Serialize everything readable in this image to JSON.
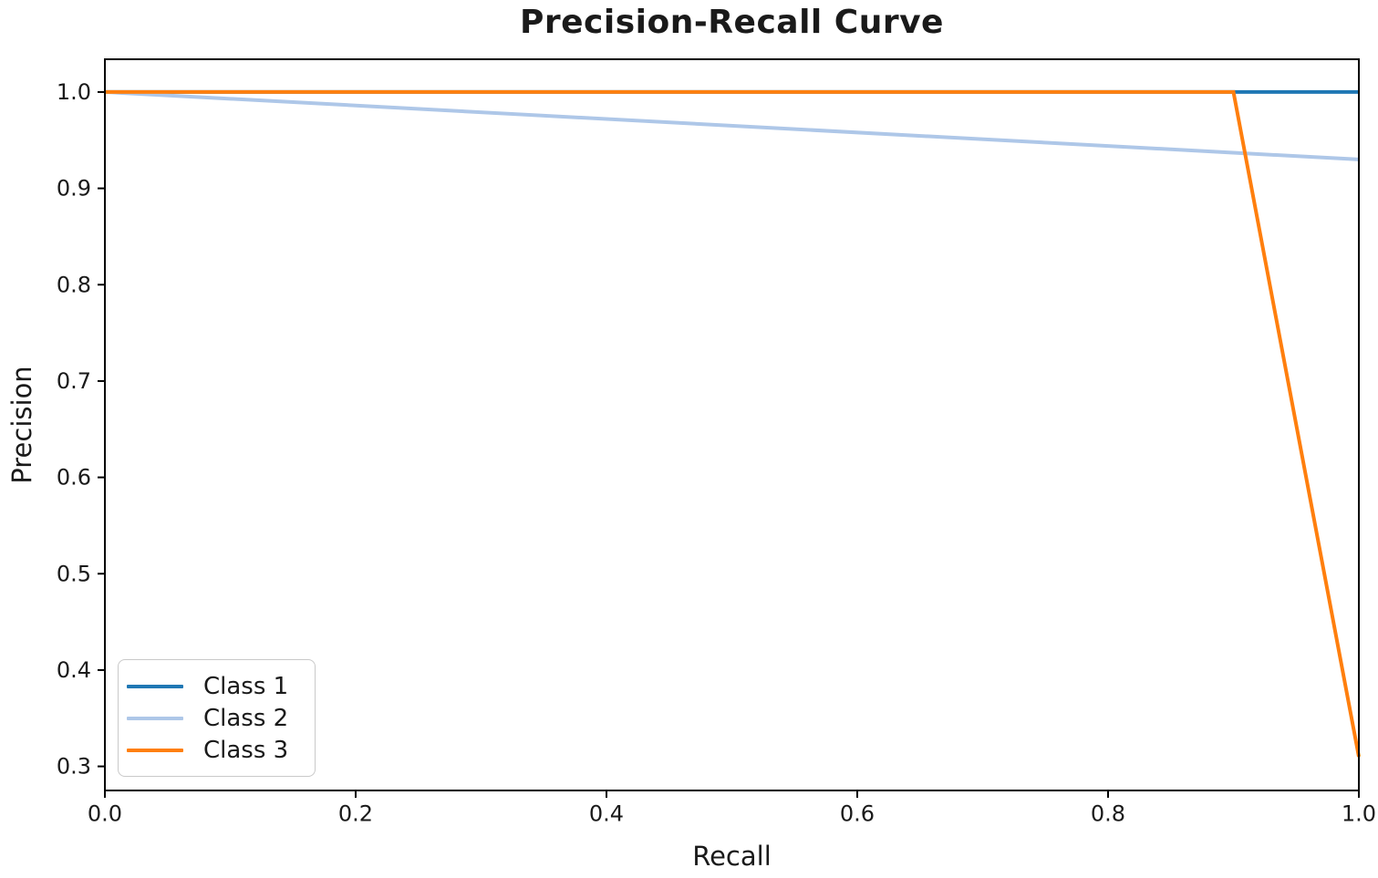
{
  "chart_data": {
    "type": "line",
    "title": "Precision-Recall Curve",
    "xlabel": "Recall",
    "ylabel": "Precision",
    "xlim": [
      0.0,
      1.0
    ],
    "ylim": [
      0.275,
      1.034
    ],
    "x_ticks": [
      0.0,
      0.2,
      0.4,
      0.6,
      0.8,
      1.0
    ],
    "x_tick_labels": [
      "0.0",
      "0.2",
      "0.4",
      "0.6",
      "0.8",
      "1.0"
    ],
    "y_ticks": [
      0.3,
      0.4,
      0.5,
      0.6,
      0.7,
      0.8,
      0.9,
      1.0
    ],
    "y_tick_labels": [
      "0.3",
      "0.4",
      "0.5",
      "0.6",
      "0.7",
      "0.8",
      "0.9",
      "1.0"
    ],
    "grid": false,
    "legend_position": "lower left",
    "axis_color": "#000000",
    "series": [
      {
        "name": "Class 1",
        "color": "#1f77b4",
        "points": [
          [
            0.0,
            1.0
          ],
          [
            1.0,
            1.0
          ]
        ]
      },
      {
        "name": "Class 2",
        "color": "#aec7e8",
        "points": [
          [
            0.0,
            1.0
          ],
          [
            1.0,
            0.93
          ]
        ]
      },
      {
        "name": "Class 3",
        "color": "#ff7f0e",
        "points": [
          [
            0.0,
            1.0
          ],
          [
            0.9,
            1.0
          ],
          [
            1.0,
            0.31
          ]
        ]
      }
    ]
  }
}
